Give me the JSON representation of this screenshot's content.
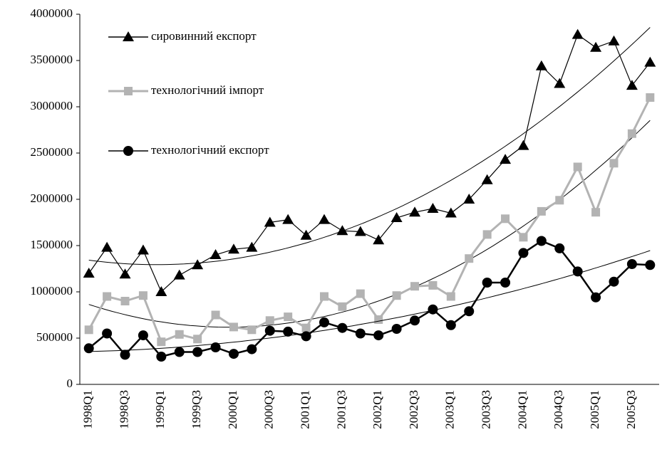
{
  "chart_data": {
    "type": "line",
    "categories": [
      "1998Q1",
      null,
      "1998Q3",
      null,
      "1999Q1",
      null,
      "1999Q3",
      null,
      "2000Q1",
      null,
      "2000Q3",
      null,
      "2001Q1",
      null,
      "2001Q3",
      null,
      "2002Q1",
      null,
      "2002Q3",
      null,
      "2003Q1",
      null,
      "2003Q3",
      null,
      "2004Q1",
      null,
      "2004Q3",
      null,
      "2005Q1",
      null,
      "2005Q3",
      null
    ],
    "series": [
      {
        "name": "сировинний експорт",
        "color": "#000000",
        "marker": "triangle",
        "values": [
          1200000,
          1480000,
          1190000,
          1450000,
          1000000,
          1180000,
          1290000,
          1400000,
          1460000,
          1480000,
          1750000,
          1780000,
          1610000,
          1780000,
          1660000,
          1650000,
          1560000,
          1800000,
          1860000,
          1900000,
          1850000,
          2000000,
          2210000,
          2430000,
          2580000,
          3440000,
          3250000,
          3780000,
          3640000,
          3710000,
          3230000,
          3480000
        ]
      },
      {
        "name": "технологічний імпорт",
        "color": "#b3b3b3",
        "marker": "square",
        "values": [
          590000,
          950000,
          900000,
          960000,
          460000,
          540000,
          490000,
          750000,
          620000,
          590000,
          690000,
          730000,
          610000,
          950000,
          840000,
          980000,
          700000,
          960000,
          1060000,
          1070000,
          950000,
          1360000,
          1620000,
          1790000,
          1590000,
          1870000,
          1990000,
          2350000,
          1860000,
          2390000,
          2710000,
          3100000
        ]
      },
      {
        "name": "технологічний експорт",
        "color": "#000000",
        "marker": "circle",
        "values": [
          390000,
          550000,
          320000,
          530000,
          300000,
          350000,
          350000,
          400000,
          330000,
          380000,
          580000,
          570000,
          520000,
          670000,
          610000,
          550000,
          530000,
          600000,
          690000,
          810000,
          640000,
          790000,
          1100000,
          1100000,
          1420000,
          1550000,
          1470000,
          1220000,
          940000,
          1110000,
          1300000,
          1290000
        ]
      }
    ],
    "ylim": [
      0,
      4000000
    ],
    "yticks": [
      0,
      500000,
      1000000,
      1500000,
      2000000,
      2500000,
      3000000,
      3500000,
      4000000
    ],
    "trendline": true,
    "legend": "upper-left"
  }
}
